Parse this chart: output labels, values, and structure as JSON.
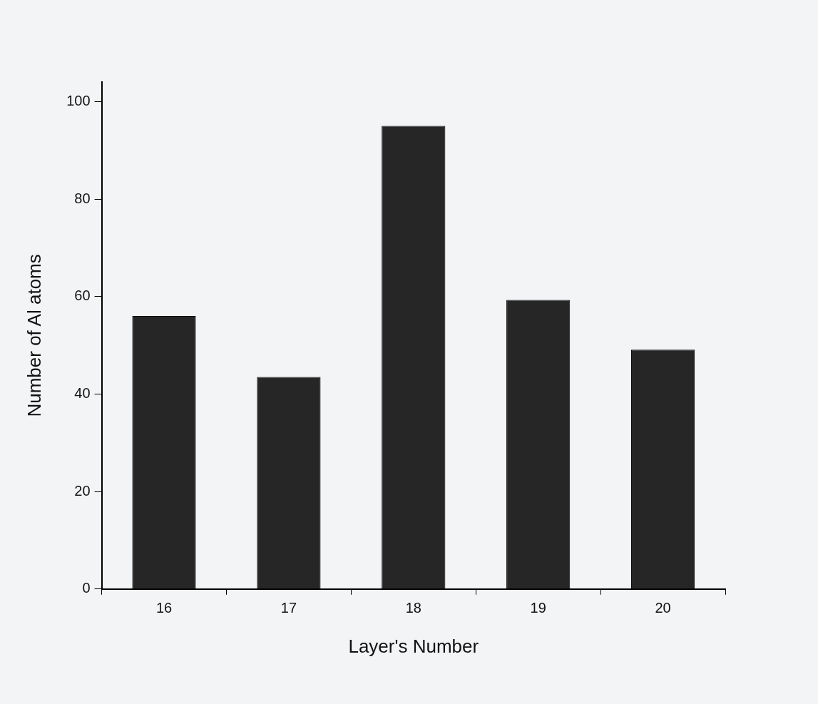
{
  "chart_data": {
    "type": "bar",
    "xlabel": "Layer's Number",
    "ylabel": "Number of Al atoms",
    "categories": [
      "16",
      "17",
      "18",
      "19",
      "20"
    ],
    "values": [
      56,
      43.5,
      95,
      59.3,
      49.1
    ],
    "color": "#262626",
    "ylim": [
      0,
      104
    ],
    "yticks": [
      0,
      20,
      40,
      60,
      80,
      100
    ],
    "grid": false,
    "legend": false
  }
}
